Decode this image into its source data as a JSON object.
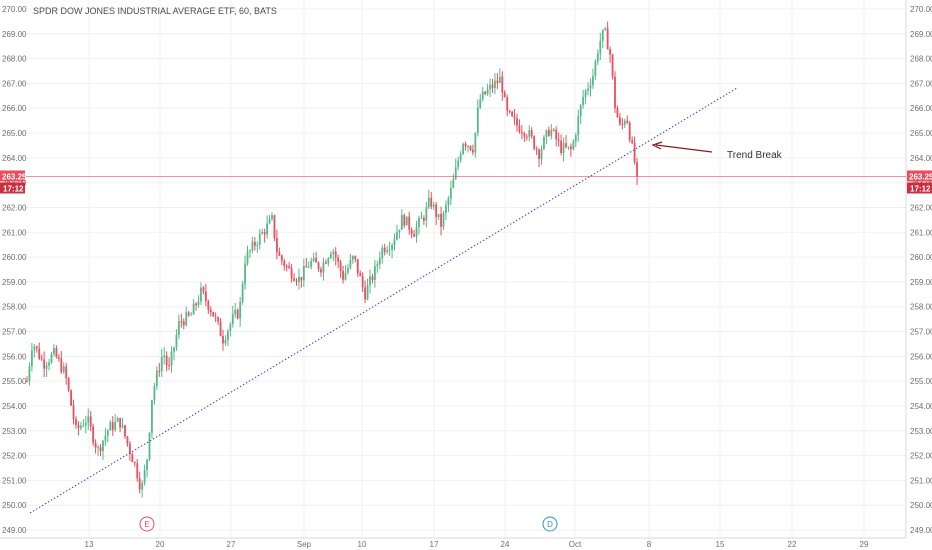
{
  "chart_data": {
    "type": "candlestick",
    "title": "SPDR DOW JONES INDUSTRIAL AVERAGE ETF, 60, BATS",
    "y_ticks": [
      "270.00",
      "269.00",
      "268.00",
      "267.00",
      "266.00",
      "265.00",
      "264.00",
      "263.00",
      "262.00",
      "261.00",
      "260.00",
      "259.00",
      "258.00",
      "257.00",
      "256.00",
      "255.00",
      "254.00",
      "253.00",
      "252.00",
      "251.00",
      "250.00",
      "249.00"
    ],
    "ylim": [
      248.8,
      270.4
    ],
    "x_ticks": [
      "13",
      "20",
      "27",
      "Sep",
      "10",
      "17",
      "24",
      "Oct",
      "8",
      "15",
      "22",
      "29"
    ],
    "last_price": "263.25",
    "countdown": "17:12",
    "annotation": "Trend Break",
    "event_markers": [
      "E",
      "D"
    ],
    "grid": true,
    "colors": {
      "up": "#53b987",
      "down": "#eb4d5c",
      "trendline": "#3a3ad6",
      "arrow": "#8b1a1a",
      "price_line": "#eb4d5c",
      "marker_E": "#eb4d5c",
      "marker_D": "#2f8fd8"
    },
    "price_path": [
      [
        0,
        255.0
      ],
      [
        1,
        256.6
      ],
      [
        3,
        255.7
      ],
      [
        5,
        256.1
      ],
      [
        7,
        255.3
      ],
      [
        9,
        253.0
      ],
      [
        11,
        253.5
      ],
      [
        13,
        252.2
      ],
      [
        15,
        253.1
      ],
      [
        17,
        253.4
      ],
      [
        20,
        251.5
      ],
      [
        21,
        250.6
      ],
      [
        22,
        251.8
      ],
      [
        23,
        254.5
      ],
      [
        25,
        256.2
      ],
      [
        26,
        255.4
      ],
      [
        28,
        257.4
      ],
      [
        30,
        257.6
      ],
      [
        32,
        258.6
      ],
      [
        34,
        257.8
      ],
      [
        36,
        256.7
      ],
      [
        38,
        257.6
      ],
      [
        39,
        257.8
      ],
      [
        40,
        259.9
      ],
      [
        42,
        260.6
      ],
      [
        44,
        261.2
      ],
      [
        45,
        261.5
      ],
      [
        46,
        260.1
      ],
      [
        48,
        259.5
      ],
      [
        50,
        259.1
      ],
      [
        52,
        259.8
      ],
      [
        54,
        259.6
      ],
      [
        56,
        260.4
      ],
      [
        58,
        259.2
      ],
      [
        60,
        260.0
      ],
      [
        62,
        258.5
      ],
      [
        64,
        259.5
      ],
      [
        65,
        260.3
      ],
      [
        67,
        260.6
      ],
      [
        69,
        261.6
      ],
      [
        71,
        261.0
      ],
      [
        73,
        261.7
      ],
      [
        74,
        262.3
      ],
      [
        76,
        261.3
      ],
      [
        78,
        262.8
      ],
      [
        80,
        264.7
      ],
      [
        82,
        264.4
      ],
      [
        83,
        266.3
      ],
      [
        85,
        266.8
      ],
      [
        87,
        267.2
      ],
      [
        88,
        265.8
      ],
      [
        90,
        265.3
      ],
      [
        92,
        265.0
      ],
      [
        94,
        264.2
      ],
      [
        96,
        265.2
      ],
      [
        98,
        264.4
      ],
      [
        100,
        264.3
      ],
      [
        102,
        266.4
      ],
      [
        104,
        267.4
      ],
      [
        105,
        268.6
      ],
      [
        106,
        269.1
      ],
      [
        107,
        268.3
      ],
      [
        108,
        266.0
      ],
      [
        109,
        265.1
      ],
      [
        110,
        265.8
      ],
      [
        111,
        264.5
      ],
      [
        112,
        263.3
      ]
    ]
  }
}
